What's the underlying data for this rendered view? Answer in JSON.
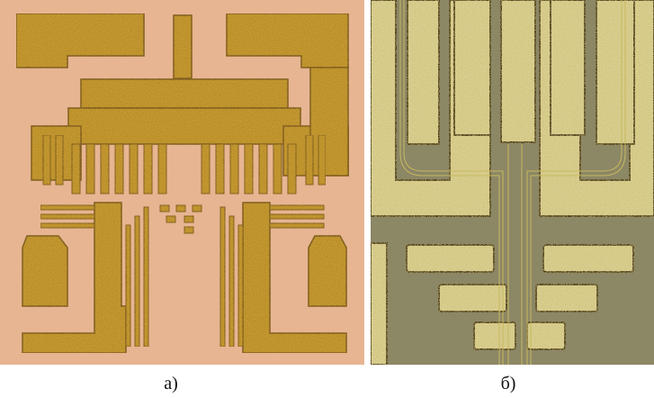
{
  "figure": {
    "panels": [
      {
        "caption": "а)"
      },
      {
        "caption": "б)"
      }
    ]
  }
}
